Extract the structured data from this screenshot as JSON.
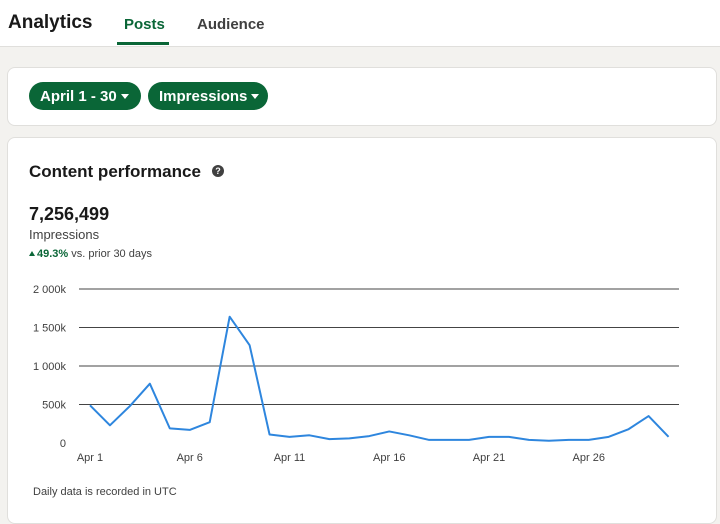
{
  "header": {
    "title": "Analytics",
    "tabs": [
      {
        "label": "Posts",
        "active": true
      },
      {
        "label": "Audience",
        "active": false
      }
    ]
  },
  "filters": {
    "date_range": "April 1 - 30",
    "metric": "Impressions"
  },
  "performance": {
    "title": "Content performance",
    "help_icon": "question-circle-icon",
    "total": "7,256,499",
    "metric_label": "Impressions",
    "change_value": "49.3%",
    "change_text": "vs. prior 30 days",
    "footnote": "Daily data is recorded in UTC"
  },
  "colors": {
    "accent": "#0a6637",
    "line": "#2e86de"
  },
  "chart_data": {
    "type": "line",
    "x": [
      "Apr 1",
      "Apr 2",
      "Apr 3",
      "Apr 4",
      "Apr 5",
      "Apr 6",
      "Apr 7",
      "Apr 8",
      "Apr 9",
      "Apr 10",
      "Apr 11",
      "Apr 12",
      "Apr 13",
      "Apr 14",
      "Apr 15",
      "Apr 16",
      "Apr 17",
      "Apr 18",
      "Apr 19",
      "Apr 20",
      "Apr 21",
      "Apr 22",
      "Apr 23",
      "Apr 24",
      "Apr 25",
      "Apr 26",
      "Apr 27",
      "Apr 28",
      "Apr 29",
      "Apr 30"
    ],
    "series": [
      {
        "values": [
          490000,
          230000,
          480000,
          770000,
          190000,
          170000,
          270000,
          1640000,
          1270000,
          110000,
          80000,
          100000,
          50000,
          60000,
          90000,
          150000,
          100000,
          40000,
          40000,
          40000,
          80000,
          80000,
          40000,
          30000,
          40000,
          40000,
          80000,
          180000,
          350000,
          80000
        ]
      }
    ],
    "x_tick_labels": [
      "Apr 1",
      "Apr 6",
      "Apr 11",
      "Apr 16",
      "Apr 21",
      "Apr 26"
    ],
    "y_tick_labels": [
      "0",
      "500k",
      "1 000k",
      "1 500k",
      "2 000k"
    ],
    "y_ticks": [
      0,
      500000,
      1000000,
      1500000,
      2000000
    ],
    "ylim": [
      0,
      2000000
    ],
    "grid": true,
    "legend": "none"
  }
}
